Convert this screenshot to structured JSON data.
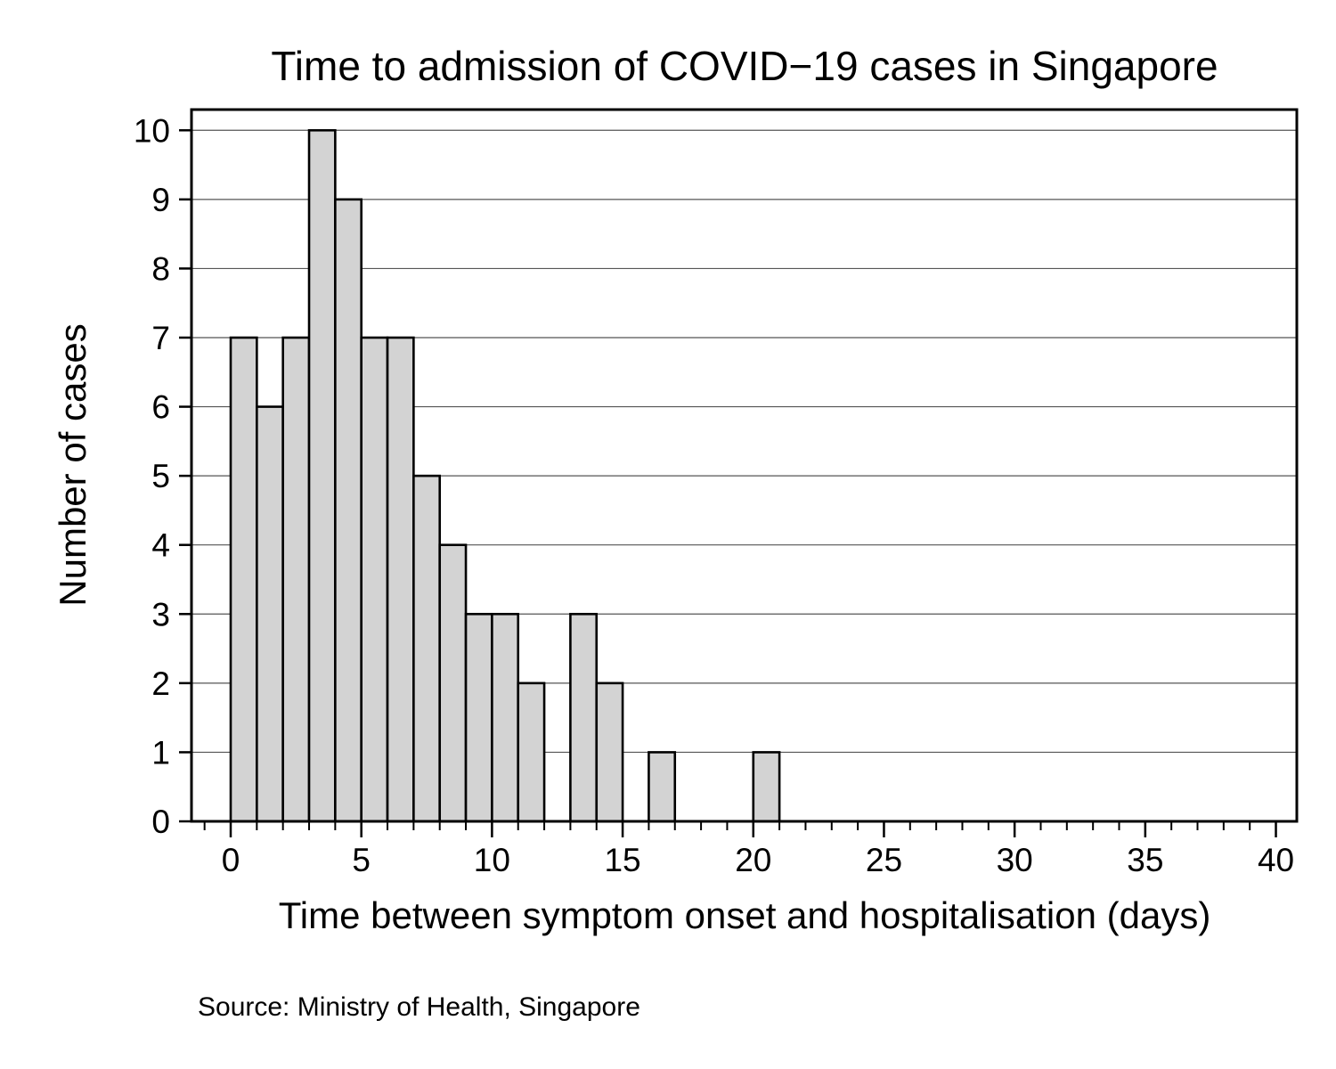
{
  "chart_data": {
    "type": "bar",
    "title": "Time to admission of COVID−19 cases in Singapore",
    "xlabel": "Time between symptom onset and hospitalisation (days)",
    "ylabel": "Number of cases",
    "source": "Source: Ministry of Health, Singapore",
    "bin_width": 1,
    "bins": [
      {
        "x": 0,
        "value": 7
      },
      {
        "x": 1,
        "value": 6
      },
      {
        "x": 2,
        "value": 7
      },
      {
        "x": 3,
        "value": 10
      },
      {
        "x": 4,
        "value": 9
      },
      {
        "x": 5,
        "value": 7
      },
      {
        "x": 6,
        "value": 7
      },
      {
        "x": 7,
        "value": 5
      },
      {
        "x": 8,
        "value": 4
      },
      {
        "x": 9,
        "value": 3
      },
      {
        "x": 10,
        "value": 3
      },
      {
        "x": 11,
        "value": 2
      },
      {
        "x": 13,
        "value": 3
      },
      {
        "x": 14,
        "value": 2
      },
      {
        "x": 16,
        "value": 1
      },
      {
        "x": 20,
        "value": 1
      }
    ],
    "xlim": [
      -1.5,
      40.8
    ],
    "ylim": [
      0,
      10.3
    ],
    "x_major_ticks": [
      0,
      5,
      10,
      15,
      20,
      25,
      30,
      35,
      40
    ],
    "x_minor_tick_step": 1,
    "y_ticks": [
      0,
      1,
      2,
      3,
      4,
      5,
      6,
      7,
      8,
      9,
      10
    ],
    "grid": "horizontal",
    "legend": "none",
    "colors": {
      "bar_fill": "#d3d3d3",
      "bar_stroke": "#000000",
      "grid": "#555555",
      "axis": "#000000"
    }
  }
}
